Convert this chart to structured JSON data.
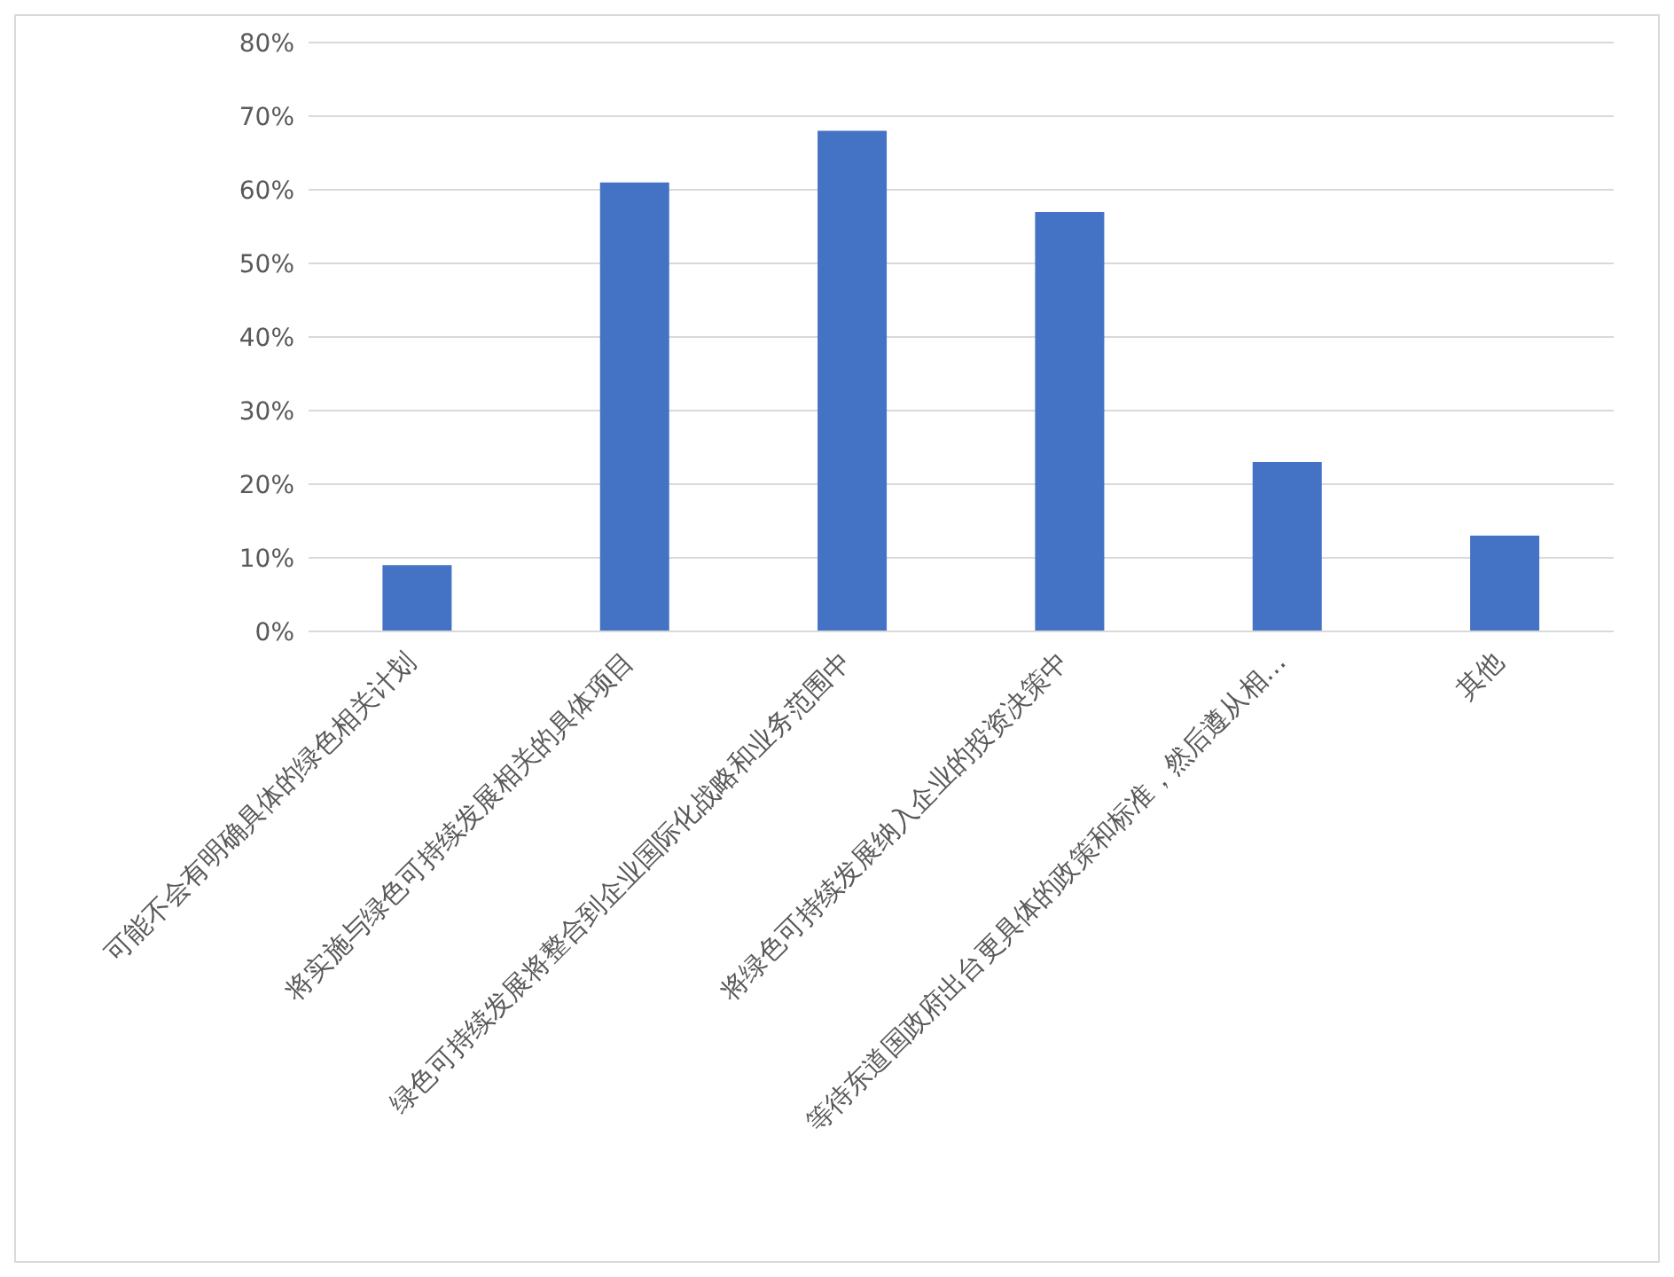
{
  "chart_data": {
    "type": "bar",
    "categories": [
      "可能不会有明确具体的绿色相关计划",
      "将实施与绿色可持续发展相关的具体项目",
      "绿色可持续发展将整合到企业国际化战略和业务范围中",
      "将绿色可持续发展纳入企业的投资决策中",
      "等待东道国政府出台更具体的政策和标准，然后遵从相…",
      "其他"
    ],
    "values": [
      9,
      61,
      68,
      57,
      23,
      13
    ],
    "color": "#4472c4",
    "ylim": [
      0,
      80
    ],
    "yticks": [
      {
        "value": 0,
        "label": "0%"
      },
      {
        "value": 10,
        "label": "10%"
      },
      {
        "value": 20,
        "label": "20%"
      },
      {
        "value": 30,
        "label": "30%"
      },
      {
        "value": 40,
        "label": "40%"
      },
      {
        "value": 50,
        "label": "50%"
      },
      {
        "value": 60,
        "label": "60%"
      },
      {
        "value": 70,
        "label": "70%"
      },
      {
        "value": 80,
        "label": "80%"
      }
    ],
    "grid": "y",
    "legend": false
  }
}
